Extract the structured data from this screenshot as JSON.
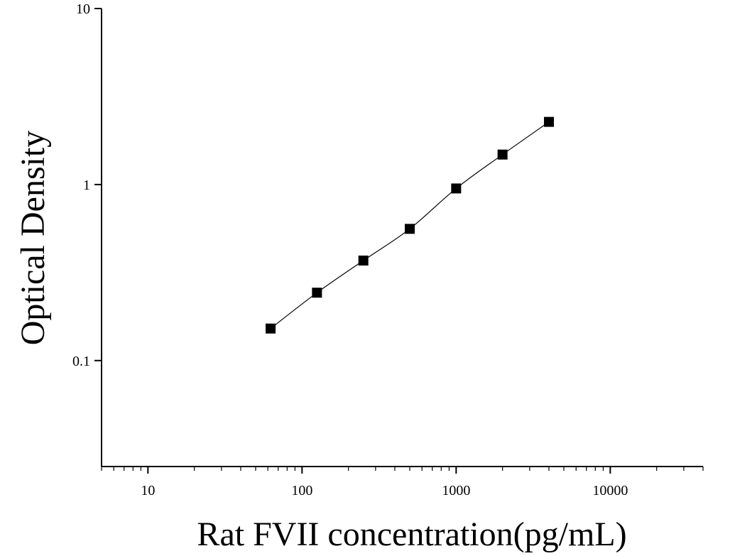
{
  "chart_data": {
    "type": "scatter",
    "title": "",
    "xlabel": "Rat FVII concentration(pg/mL)",
    "ylabel": "Optical Density",
    "x_scale": "log",
    "y_scale": "log",
    "xlim": [
      5,
      40000
    ],
    "ylim": [
      0.025,
      10
    ],
    "x_ticks": [
      10,
      100,
      1000,
      10000
    ],
    "x_tick_labels": [
      "10",
      "100",
      "1000",
      "10000"
    ],
    "y_ticks": [
      0.1,
      1,
      10
    ],
    "y_tick_labels": [
      "0.1",
      "1",
      "10"
    ],
    "grid": false,
    "legend": "none",
    "colors": {
      "marker": "#000000",
      "line": "#000000",
      "axis": "#000000"
    },
    "series": [
      {
        "marker": "square",
        "fit_line": true,
        "points": [
          {
            "x": 62.5,
            "y": 0.152
          },
          {
            "x": 125,
            "y": 0.243
          },
          {
            "x": 250,
            "y": 0.37
          },
          {
            "x": 500,
            "y": 0.56
          },
          {
            "x": 1000,
            "y": 0.95
          },
          {
            "x": 2000,
            "y": 1.48
          },
          {
            "x": 4000,
            "y": 2.27
          }
        ]
      }
    ]
  }
}
